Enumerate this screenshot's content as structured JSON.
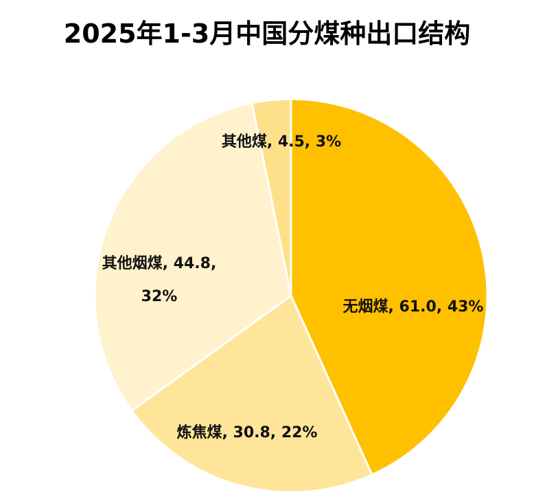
{
  "chart_data": {
    "type": "pie",
    "title": "2025年1-3月中国分煤种出口结构",
    "categories": [
      "无烟煤",
      "炼焦煤",
      "其他烟煤",
      "其他煤"
    ],
    "values": [
      61.0,
      30.8,
      44.8,
      4.5
    ],
    "percents": [
      "43%",
      "22%",
      "32%",
      "3%"
    ],
    "labels": [
      [
        "无烟煤, 61.0, 43%"
      ],
      [
        "炼焦煤, 30.8, 22%"
      ],
      [
        "其他烟煤, 44.8,",
        "32%"
      ],
      [
        "其他煤, 4.5, 3%"
      ]
    ],
    "colors": [
      "#FFC000",
      "#FFE59A",
      "#FFF2CC",
      "#FFE08A"
    ],
    "legend": "none"
  }
}
